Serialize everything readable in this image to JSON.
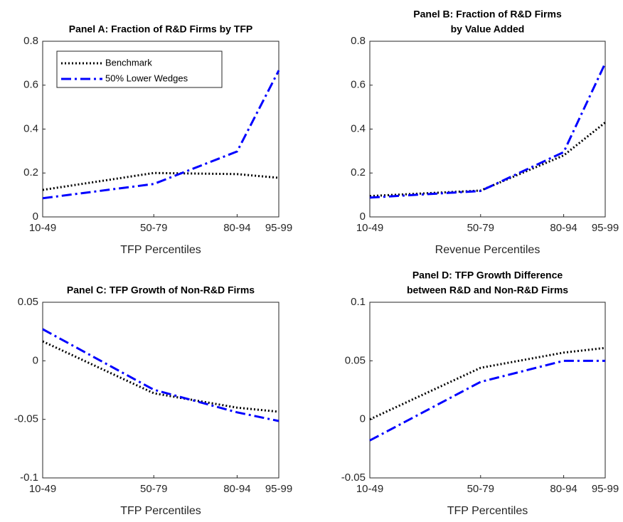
{
  "chart_data": [
    {
      "type": "line",
      "title": [
        "Panel A: Fraction of R&D Firms by TFP"
      ],
      "xlabel": "TFP Percentiles",
      "x": [
        10,
        50,
        80,
        95
      ],
      "xlim": [
        10,
        95
      ],
      "xticks": [
        {
          "value": 10,
          "label": "10-49"
        },
        {
          "value": 50,
          "label": "50-79"
        },
        {
          "value": 80,
          "label": "80-94"
        },
        {
          "value": 95,
          "label": "95-99"
        }
      ],
      "ylim": [
        0,
        0.8
      ],
      "yticks": [
        0,
        0.2,
        0.4,
        0.6,
        0.8
      ],
      "legend": "upper left",
      "series": [
        {
          "name": "Benchmark",
          "color": "#000000",
          "linestyle": "dotted",
          "values": [
            0.123,
            0.2,
            0.195,
            0.178
          ]
        },
        {
          "name": "50% Lower Wedges",
          "color": "#0000ff",
          "linestyle": "dashdot",
          "values": [
            0.085,
            0.15,
            0.298,
            0.667
          ]
        }
      ]
    },
    {
      "type": "line",
      "title": [
        "Panel B: Fraction of R&D Firms",
        "by Value Added"
      ],
      "xlabel": "Revenue Percentiles",
      "x": [
        10,
        50,
        80,
        95
      ],
      "xlim": [
        10,
        95
      ],
      "xticks": [
        {
          "value": 10,
          "label": "10-49"
        },
        {
          "value": 50,
          "label": "50-79"
        },
        {
          "value": 80,
          "label": "80-94"
        },
        {
          "value": 95,
          "label": "95-99"
        }
      ],
      "ylim": [
        0,
        0.8
      ],
      "yticks": [
        0,
        0.2,
        0.4,
        0.6,
        0.8
      ],
      "series": [
        {
          "color": "#000000",
          "linestyle": "dotted",
          "values": [
            0.095,
            0.12,
            0.28,
            0.43
          ]
        },
        {
          "color": "#0000ff",
          "linestyle": "dashdot",
          "values": [
            0.088,
            0.118,
            0.295,
            0.7
          ]
        }
      ]
    },
    {
      "type": "line",
      "title": [
        "Panel C: TFP Growth of Non-R&D Firms"
      ],
      "xlabel": "TFP Percentiles",
      "x": [
        10,
        50,
        80,
        95
      ],
      "xlim": [
        10,
        95
      ],
      "xticks": [
        {
          "value": 10,
          "label": "10-49"
        },
        {
          "value": 50,
          "label": "50-79"
        },
        {
          "value": 80,
          "label": "80-94"
        },
        {
          "value": 95,
          "label": "95-99"
        }
      ],
      "ylim": [
        -0.1,
        0.05
      ],
      "yticks": [
        -0.1,
        -0.05,
        0,
        0.05
      ],
      "series": [
        {
          "color": "#000000",
          "linestyle": "dotted",
          "values": [
            0.0166,
            -0.0277,
            -0.04,
            -0.0435
          ]
        },
        {
          "color": "#0000ff",
          "linestyle": "dashdot",
          "values": [
            0.027,
            -0.0247,
            -0.044,
            -0.0514
          ]
        }
      ]
    },
    {
      "type": "line",
      "title": [
        "Panel D: TFP Growth Difference",
        "between R&D and Non-R&D Firms"
      ],
      "xlabel": "TFP Percentiles",
      "x": [
        10,
        50,
        80,
        95
      ],
      "xlim": [
        10,
        95
      ],
      "xticks": [
        {
          "value": 10,
          "label": "10-49"
        },
        {
          "value": 50,
          "label": "50-79"
        },
        {
          "value": 80,
          "label": "80-94"
        },
        {
          "value": 95,
          "label": "95-99"
        }
      ],
      "ylim": [
        -0.05,
        0.1
      ],
      "yticks": [
        -0.05,
        0,
        0.05,
        0.1
      ],
      "series": [
        {
          "color": "#000000",
          "linestyle": "dotted",
          "values": [
            0,
            0.044,
            0.057,
            0.061
          ]
        },
        {
          "color": "#0000ff",
          "linestyle": "dashdot",
          "values": [
            -0.018,
            0.032,
            0.05,
            0.05
          ]
        }
      ]
    }
  ]
}
